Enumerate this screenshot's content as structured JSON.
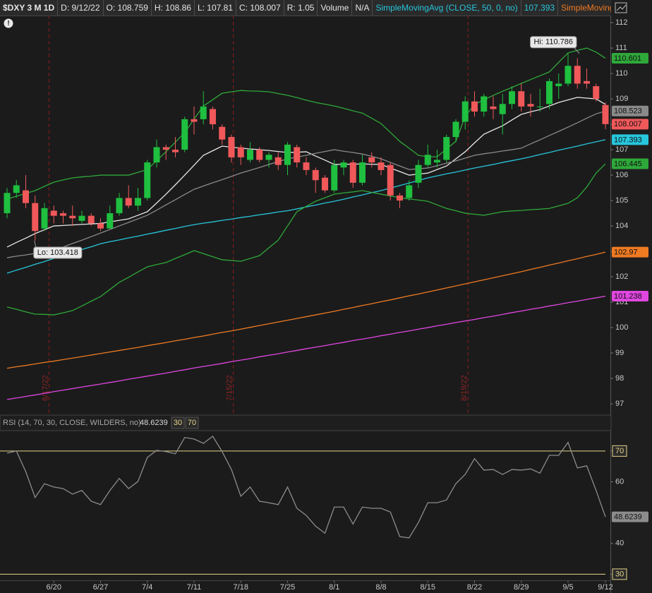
{
  "header": {
    "symbol": "$DXY 3 M 1D",
    "date": "D: 9/12/22",
    "open": "O: 108.759",
    "high": "H: 108.86",
    "low": "L: 107.81",
    "close": "C: 108.007",
    "range": "R: 1.05",
    "volume_label": "Volume",
    "volume": "N/A"
  },
  "chart_data": [
    {
      "type": "candlestick",
      "categories": [
        null,
        null,
        null,
        null,
        null,
        "6/20",
        null,
        null,
        null,
        null,
        "6/27",
        null,
        null,
        null,
        null,
        "7/4",
        null,
        null,
        null,
        null,
        "7/11",
        null,
        null,
        null,
        null,
        "7/18",
        null,
        null,
        null,
        null,
        "7/25",
        null,
        null,
        null,
        null,
        "8/1",
        null,
        null,
        null,
        null,
        "8/8",
        null,
        null,
        null,
        null,
        "8/15",
        null,
        null,
        null,
        null,
        "8/22",
        null,
        null,
        null,
        null,
        "8/29",
        null,
        null,
        null,
        null,
        "9/5",
        null,
        null,
        null,
        "9/12"
      ],
      "open": [
        104.5,
        105.3,
        105.4,
        104.9,
        103.9,
        104.6,
        104.5,
        104.4,
        104.2,
        104.4,
        104.1,
        103.9,
        104.5,
        105.1,
        104.8,
        105.1,
        106.5,
        107.1,
        107.0,
        107.0,
        108.2,
        108.2,
        108.6,
        107.9,
        107.5,
        107.1,
        106.6,
        107.0,
        106.6,
        106.7,
        106.4,
        107.1,
        106.5,
        106.2,
        105.9,
        105.4,
        106.3,
        106.5,
        105.7,
        106.7,
        106.5,
        106.4,
        105.2,
        105.1,
        105.7,
        106.4,
        106.5,
        106.6,
        107.5,
        108.1,
        108.9,
        108.5,
        108.7,
        108.4,
        108.8,
        109.3,
        108.8,
        108.7,
        108.8,
        109.5,
        109.6,
        110.3,
        109.7,
        109.5,
        108.759
      ],
      "high": [
        105.5,
        105.8,
        106.0,
        105.2,
        104.9,
        104.8,
        104.6,
        104.8,
        104.6,
        104.5,
        104.3,
        104.8,
        105.3,
        105.6,
        105.5,
        106.6,
        107.4,
        107.2,
        107.5,
        108.3,
        108.7,
        109.3,
        108.7,
        108.0,
        107.6,
        107.2,
        107.3,
        107.1,
        106.9,
        106.9,
        107.3,
        107.2,
        106.7,
        106.3,
        106.0,
        106.6,
        106.6,
        106.6,
        106.8,
        106.9,
        106.7,
        106.5,
        105.3,
        105.8,
        106.6,
        107.2,
        107.0,
        107.6,
        108.2,
        109.1,
        109.3,
        109.2,
        109.1,
        109.2,
        109.5,
        109.6,
        109.2,
        109.4,
        109.8,
        110.0,
        110.786,
        110.6,
        110.2,
        109.6,
        108.86
      ],
      "low": [
        104.3,
        105.1,
        104.7,
        103.418,
        103.8,
        104.1,
        104.1,
        104.0,
        104.1,
        104.0,
        103.8,
        103.9,
        104.4,
        104.7,
        104.6,
        105.0,
        106.3,
        106.6,
        106.7,
        106.9,
        107.6,
        108.0,
        107.8,
        107.2,
        106.5,
        106.4,
        106.5,
        106.5,
        106.3,
        106.2,
        106.0,
        106.3,
        106.0,
        105.3,
        105.3,
        105.3,
        106.0,
        105.5,
        105.6,
        106.3,
        106.0,
        105.0,
        104.7,
        105.0,
        105.5,
        106.3,
        106.3,
        106.5,
        107.3,
        107.8,
        108.3,
        108.3,
        108.2,
        107.6,
        108.6,
        108.5,
        108.3,
        108.5,
        108.6,
        109.0,
        109.5,
        109.4,
        109.4,
        108.9,
        107.81
      ],
      "close": [
        105.3,
        105.6,
        104.9,
        103.8,
        104.7,
        104.4,
        104.4,
        104.3,
        104.4,
        104.1,
        103.9,
        104.5,
        105.1,
        104.8,
        105.1,
        106.5,
        107.1,
        107.0,
        106.9,
        108.2,
        108.1,
        108.7,
        108.0,
        107.4,
        106.7,
        106.7,
        107.0,
        106.6,
        106.8,
        106.4,
        107.2,
        106.5,
        106.2,
        105.8,
        105.4,
        106.4,
        106.5,
        105.7,
        106.5,
        106.5,
        106.2,
        105.2,
        105.0,
        105.6,
        106.4,
        106.8,
        106.6,
        107.5,
        108.1,
        108.9,
        108.5,
        109.1,
        108.6,
        108.8,
        109.3,
        108.7,
        108.7,
        108.7,
        109.7,
        109.6,
        110.3,
        109.6,
        109.6,
        109.0,
        108.007
      ],
      "up_color": "#1fbf3f",
      "down_color": "#f0585a",
      "close_badge": true,
      "series": [
        {
          "color": "#2fa83a",
          "badge": true,
          "values": [
            105.06,
            105.17,
            105.28,
            105.39,
            105.56,
            105.72,
            105.81,
            105.89,
            105.93,
            105.96,
            106.0,
            106.0,
            106.0,
            106.0,
            106.11,
            106.22,
            106.57,
            106.92,
            107.3,
            107.67,
            108.2,
            108.72,
            108.97,
            109.22,
            109.28,
            109.33,
            109.31,
            109.3,
            109.28,
            109.21,
            109.14,
            109.05,
            108.95,
            108.86,
            108.79,
            108.72,
            108.63,
            108.53,
            108.44,
            108.24,
            108.03,
            107.68,
            107.33,
            107.06,
            106.78,
            106.72,
            106.72,
            107.03,
            107.33,
            108.31,
            108.78,
            108.96,
            109.14,
            109.3,
            109.45,
            109.61,
            109.76,
            109.91,
            110.06,
            110.44,
            110.81,
            110.91,
            111.0,
            110.84,
            110.601
          ]
        },
        {
          "color": "#2fa83a",
          "badge": true,
          "values": [
            100.81,
            100.72,
            100.62,
            100.53,
            100.52,
            100.5,
            100.58,
            100.67,
            100.85,
            101.04,
            101.22,
            101.5,
            101.78,
            101.98,
            102.19,
            102.39,
            102.48,
            102.56,
            102.72,
            102.87,
            103.03,
            102.91,
            102.79,
            102.67,
            102.64,
            102.61,
            102.72,
            102.83,
            103.14,
            103.44,
            104.0,
            104.56,
            104.77,
            104.97,
            105.11,
            105.25,
            105.3,
            105.34,
            105.39,
            105.32,
            105.25,
            105.18,
            105.11,
            105.06,
            105.02,
            104.97,
            104.83,
            104.69,
            104.6,
            104.5,
            104.46,
            104.42,
            104.49,
            104.56,
            104.59,
            104.61,
            104.64,
            104.66,
            104.69,
            104.79,
            104.89,
            105.11,
            105.53,
            106.08,
            106.445
          ]
        },
        {
          "color": "#8a8a8a",
          "badge": true,
          "values": [
            102.75,
            102.81,
            102.86,
            102.92,
            102.97,
            103.03,
            103.17,
            103.31,
            103.44,
            103.58,
            103.72,
            103.86,
            104.0,
            104.14,
            104.28,
            104.42,
            104.62,
            104.83,
            105.03,
            105.24,
            105.44,
            105.57,
            105.7,
            105.82,
            105.95,
            106.08,
            106.19,
            106.3,
            106.42,
            106.53,
            106.64,
            106.71,
            106.78,
            106.86,
            106.93,
            107.0,
            106.94,
            106.89,
            106.83,
            106.74,
            106.64,
            106.5,
            106.36,
            106.22,
            106.25,
            106.28,
            106.37,
            106.47,
            106.56,
            106.67,
            106.78,
            106.84,
            106.89,
            106.95,
            107.0,
            107.06,
            107.23,
            107.39,
            107.56,
            107.72,
            107.89,
            108.06,
            108.24,
            108.41,
            108.523
          ]
        },
        {
          "color": "#e8e8e8",
          "badge": false,
          "values": [
            103.17,
            103.35,
            103.52,
            103.7,
            103.85,
            104.0,
            104.02,
            104.04,
            104.06,
            104.08,
            104.1,
            104.16,
            104.22,
            104.28,
            104.42,
            104.56,
            104.9,
            105.25,
            105.62,
            106.0,
            106.39,
            106.78,
            106.96,
            107.14,
            107.1,
            107.06,
            107.03,
            107.0,
            106.97,
            106.93,
            106.89,
            106.9,
            106.92,
            106.75,
            106.59,
            106.42,
            106.43,
            106.43,
            106.44,
            106.43,
            106.42,
            106.28,
            106.14,
            106.0,
            106.04,
            106.08,
            106.22,
            106.36,
            106.64,
            106.92,
            107.27,
            107.61,
            107.78,
            107.94,
            108.17,
            108.39,
            108.49,
            108.58,
            108.72,
            108.86,
            108.96,
            109.06,
            109.03,
            109.0,
            108.78
          ]
        },
        {
          "name": "SimpleMovingAvg (CLOSE, 50, 0, no)",
          "color": "#27c6dc",
          "badge": true,
          "values": [
            102.14,
            102.26,
            102.37,
            102.49,
            102.6,
            102.72,
            102.84,
            102.95,
            103.07,
            103.18,
            103.3,
            103.38,
            103.45,
            103.53,
            103.6,
            103.68,
            103.75,
            103.83,
            103.9,
            103.98,
            104.05,
            104.11,
            104.16,
            104.22,
            104.27,
            104.33,
            104.38,
            104.44,
            104.49,
            104.55,
            104.6,
            104.67,
            104.75,
            104.82,
            104.9,
            104.97,
            105.05,
            105.14,
            105.22,
            105.31,
            105.39,
            105.49,
            105.59,
            105.69,
            105.79,
            105.89,
            105.97,
            106.05,
            106.12,
            106.2,
            106.28,
            106.35,
            106.42,
            106.5,
            106.57,
            106.64,
            106.72,
            106.81,
            106.89,
            106.98,
            107.06,
            107.14,
            107.23,
            107.31,
            107.393
          ]
        },
        {
          "name": "SimpleMovingAvg ...",
          "color": "#ee7a22",
          "badge": true,
          "values": [
            98.4,
            98.46,
            98.51,
            98.57,
            98.63,
            98.68,
            98.74,
            98.8,
            98.86,
            98.92,
            98.98,
            99.04,
            99.1,
            99.16,
            99.22,
            99.29,
            99.35,
            99.41,
            99.48,
            99.54,
            99.61,
            99.67,
            99.74,
            99.81,
            99.87,
            99.94,
            100.01,
            100.08,
            100.15,
            100.22,
            100.29,
            100.36,
            100.43,
            100.5,
            100.57,
            100.64,
            100.72,
            100.79,
            100.87,
            100.94,
            101.02,
            101.09,
            101.17,
            101.25,
            101.32,
            101.4,
            101.48,
            101.56,
            101.64,
            101.72,
            101.8,
            101.88,
            101.96,
            102.04,
            102.12,
            102.2,
            102.29,
            102.37,
            102.46,
            102.54,
            102.63,
            102.71,
            102.8,
            102.88,
            102.97
          ]
        },
        {
          "color": "#e046e0",
          "badge": true,
          "values": [
            97.17,
            97.23,
            97.29,
            97.35,
            97.41,
            97.48,
            97.54,
            97.6,
            97.66,
            97.72,
            97.78,
            97.84,
            97.9,
            97.97,
            98.03,
            98.09,
            98.15,
            98.21,
            98.28,
            98.34,
            98.41,
            98.47,
            98.53,
            98.59,
            98.66,
            98.72,
            98.78,
            98.85,
            98.91,
            98.97,
            99.04,
            99.1,
            99.17,
            99.23,
            99.29,
            99.36,
            99.42,
            99.49,
            99.55,
            99.61,
            99.68,
            99.74,
            99.81,
            99.87,
            99.94,
            100.0,
            100.07,
            100.13,
            100.2,
            100.26,
            100.32,
            100.39,
            100.45,
            100.52,
            100.59,
            100.65,
            100.72,
            100.78,
            100.85,
            100.91,
            100.98,
            101.04,
            101.11,
            101.17,
            101.238
          ]
        }
      ],
      "annotations": [
        "6/17/22",
        "7/15/22",
        "8/19/22"
      ],
      "hi_label": "Hi: 110.786",
      "lo_label": "Lo: 103.418",
      "ylim": [
        96.64,
        112.28
      ],
      "yticks": [
        97,
        98,
        99,
        100,
        101,
        102,
        103,
        104,
        105,
        106,
        107,
        108,
        109,
        110,
        111,
        112
      ],
      "grid": false
    },
    {
      "type": "line",
      "title": "RSI (14, 70, 30, CLOSE, WILDERS, no)",
      "overbought": 70,
      "oversold": 30,
      "level_color": "#e6d58a",
      "series": [
        {
          "color": "#8c8c8c",
          "values": [
            69.3,
            70.0,
            63.3,
            54.9,
            59.4,
            58.3,
            57.8,
            56.0,
            57.2,
            53.7,
            52.6,
            57.2,
            61.1,
            57.8,
            60.1,
            67.9,
            70.2,
            69.8,
            69.1,
            74.4,
            73.9,
            72.5,
            74.8,
            69.8,
            64.0,
            55.3,
            58.3,
            53.7,
            53.2,
            52.6,
            58.3,
            51.4,
            49.1,
            45.6,
            43.3,
            51.8,
            51.8,
            46.3,
            51.8,
            51.4,
            51.4,
            50.2,
            42.2,
            41.8,
            46.8,
            53.2,
            53.2,
            54.1,
            59.4,
            62.4,
            67.5,
            63.8,
            64.0,
            62.4,
            64.0,
            63.8,
            64.2,
            62.8,
            68.6,
            68.6,
            72.8,
            64.5,
            65.2,
            57.2,
            48.6239
          ]
        }
      ],
      "ylim": [
        23.9,
        81.2
      ],
      "yticks": [
        30,
        40,
        60,
        70
      ]
    }
  ]
}
